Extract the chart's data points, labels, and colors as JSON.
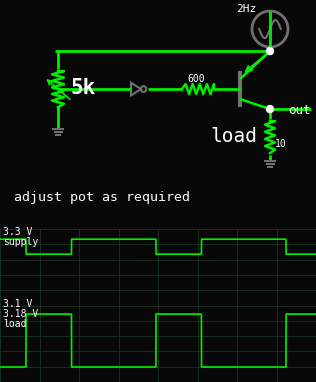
{
  "bg_color": "#080808",
  "circuit_color": "#00ee00",
  "gray_color": "#707070",
  "white_dot_color": "#ffffff",
  "text_color": "#ffffff",
  "grid_color": "#1a3320",
  "osc_line_color": "#00ee00",
  "freq_label": "2Hz",
  "resistor_600": "600",
  "resistor_5k": "5k",
  "resistor_10": "10",
  "load_text": "load",
  "out_text": "out",
  "caption": "adjust pot as required",
  "supply_label": "3.3 V",
  "supply_channel": "supply",
  "load_label_1": "3.1 V",
  "load_label_2": "3.18 V",
  "load_channel": "load"
}
